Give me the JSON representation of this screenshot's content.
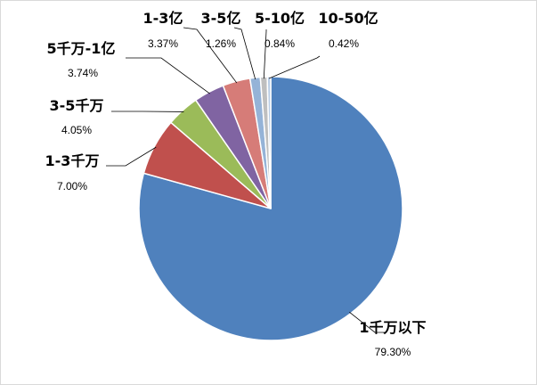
{
  "chart_data": {
    "type": "pie",
    "title": "",
    "legend": "none",
    "categories": [
      "1千万以下",
      "1-3千万",
      "3-5千万",
      "5千万-1亿",
      "1-3亿",
      "3-5亿",
      "5-10亿",
      "10-50亿"
    ],
    "values": [
      79.3,
      7.0,
      4.05,
      3.74,
      3.37,
      1.26,
      0.84,
      0.42
    ],
    "value_labels": [
      "79.30%",
      "7.00%",
      "4.05%",
      "3.74%",
      "3.37%",
      "1.26%",
      "0.84%",
      "0.42%"
    ],
    "colors": [
      "#4F81BD",
      "#C0504D",
      "#9BBB59",
      "#8064A2",
      "#D67C78",
      "#95B3D7",
      "#BFBFBF",
      "#B9CDE5"
    ],
    "start_angle": "12 o'clock",
    "direction": "clockwise",
    "label_style": "outside with leader lines"
  }
}
